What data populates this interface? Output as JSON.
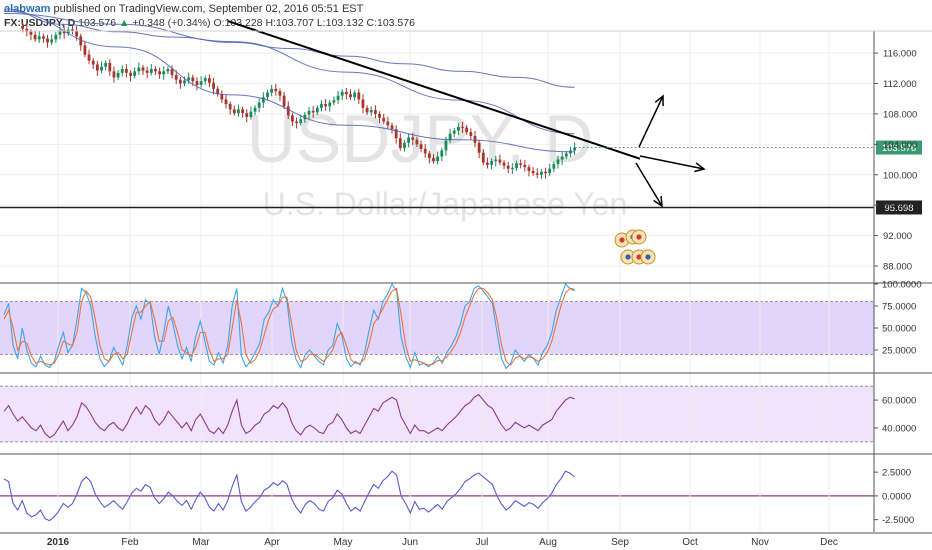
{
  "header": {
    "username": "alabwam",
    "published": "published on TradingView.com, September 02, 2016 05:51 EST",
    "symbol": "FX:USDJPY, D",
    "last": "103.576",
    "change": "+0.348 (+0.34%)",
    "open": "O:103.228",
    "high": "H:103.707",
    "low": "L:103.132",
    "close": "C:103.576"
  },
  "watermark": {
    "symbol": "USDJPY, D",
    "name": "U.S. Dollar/Japanese Yen"
  },
  "colors": {
    "up_candle": "#1a8a5a",
    "down_candle": "#a8342c",
    "ma": "#4e5db8",
    "stoch_k": "#3fa5e8",
    "stoch_d": "#e8763c",
    "stoch_band": "#e3d4fb",
    "rsi": "#8e3a8e",
    "rsi_band": "#f1e3fb",
    "mom": "#5a5ad0",
    "zero_line": "#8e3a8e",
    "price_label_bg": "#3b9a72",
    "support_label_bg": "#222222"
  },
  "chart_data": [
    {
      "type": "candlestick",
      "x_ticks": [
        "2016",
        "Feb",
        "Mar",
        "Apr",
        "May",
        "Jun",
        "Jul",
        "Aug",
        "Sep",
        "Oct",
        "Nov",
        "Dec"
      ],
      "y_ticks": [
        "116.000",
        "112.000",
        "108.000",
        "104.000",
        "100.000",
        "96.000",
        "92.000",
        "88.000"
      ],
      "ylim": [
        85.9,
        118.9
      ],
      "last_price": "103.576",
      "support_level": "95.698",
      "closes": [
        119.6,
        119.2,
        118.8,
        118.4,
        117.8,
        118.2,
        117.9,
        117.4,
        117.8,
        118.4,
        119.0,
        118.6,
        119.1,
        118.9,
        118.2,
        117.0,
        115.8,
        115.0,
        114.5,
        113.7,
        114.2,
        114.7,
        113.6,
        112.8,
        113.4,
        113.9,
        113.4,
        113.0,
        113.6,
        114.1,
        113.7,
        113.4,
        113.9,
        113.6,
        113.2,
        113.6,
        113.9,
        113.1,
        112.5,
        112.0,
        112.4,
        112.8,
        112.3,
        111.8,
        112.3,
        112.7,
        112.1,
        111.3,
        110.6,
        109.9,
        109.3,
        108.6,
        108.1,
        108.6,
        108.1,
        107.6,
        108.3,
        108.8,
        109.5,
        110.2,
        110.8,
        111.3,
        111.0,
        110.4,
        109.0,
        107.8,
        107.0,
        106.8,
        107.3,
        107.9,
        108.4,
        108.2,
        108.8,
        109.3,
        109.0,
        109.5,
        109.8,
        110.4,
        110.9,
        110.6,
        110.2,
        110.8,
        109.9,
        108.8,
        108.2,
        108.5,
        108.0,
        107.5,
        107.0,
        106.5,
        106.0,
        104.8,
        103.5,
        104.2,
        104.9,
        104.6,
        104.0,
        103.4,
        102.8,
        102.2,
        101.8,
        102.4,
        103.2,
        104.5,
        105.4,
        105.8,
        106.3,
        106.2,
        105.6,
        105.1,
        104.2,
        102.9,
        101.6,
        101.3,
        101.8,
        102.0,
        101.6,
        101.2,
        100.8,
        100.9,
        101.5,
        101.3,
        101.0,
        100.5,
        100.2,
        100.0,
        100.4,
        100.2,
        100.8,
        101.4,
        102.0,
        102.4,
        102.8,
        103.2,
        103.58
      ],
      "ma_series": [
        {
          "values": [
            121.5,
            116.8,
            110.5,
            106.5,
            104.6,
            103.0
          ]
        },
        {
          "values": [
            121.2,
            119.8,
            117.5,
            113.5,
            109.8,
            105.4
          ]
        },
        {
          "values": [
            121.8,
            119.8,
            118.8,
            118.1,
            117.4,
            116.6,
            115.6,
            114.6,
            113.6,
            112.8,
            111.5
          ]
        }
      ],
      "trendline": {
        "from": [
          120.2
        ],
        "to": [
          102.1
        ]
      }
    },
    {
      "type": "line",
      "name": "stochastic",
      "y_ticks": [
        "100.0000",
        "75.0000",
        "50.0000",
        "25.0000"
      ],
      "ylim": [
        0,
        100
      ],
      "band": [
        20,
        80
      ],
      "k": [
        65,
        78,
        30,
        15,
        50,
        25,
        10,
        6,
        18,
        8,
        5,
        12,
        30,
        45,
        22,
        30,
        60,
        95,
        90,
        75,
        40,
        15,
        6,
        12,
        28,
        18,
        8,
        30,
        62,
        75,
        60,
        82,
        78,
        40,
        20,
        45,
        75,
        55,
        30,
        15,
        28,
        12,
        40,
        58,
        35,
        12,
        8,
        22,
        10,
        30,
        75,
        95,
        18,
        6,
        12,
        22,
        32,
        60,
        68,
        82,
        75,
        95,
        80,
        35,
        14,
        5,
        20,
        25,
        18,
        12,
        8,
        25,
        30,
        55,
        42,
        15,
        6,
        12,
        8,
        22,
        48,
        70,
        60,
        80,
        88,
        100,
        92,
        40,
        18,
        5,
        22,
        8,
        10,
        6,
        10,
        18,
        10,
        22,
        30,
        40,
        55,
        75,
        80,
        95,
        98,
        92,
        85,
        78,
        45,
        15,
        4,
        10,
        25,
        18,
        12,
        20,
        15,
        8,
        22,
        30,
        45,
        70,
        85,
        100,
        95,
        92
      ],
      "d": [
        60,
        70,
        50,
        25,
        35,
        33,
        18,
        10,
        12,
        10,
        8,
        10,
        20,
        35,
        32,
        30,
        45,
        80,
        92,
        85,
        60,
        30,
        15,
        12,
        20,
        22,
        15,
        20,
        45,
        68,
        68,
        75,
        80,
        60,
        35,
        35,
        58,
        62,
        45,
        25,
        22,
        18,
        28,
        45,
        45,
        25,
        12,
        15,
        15,
        20,
        50,
        82,
        55,
        20,
        10,
        14,
        24,
        42,
        60,
        72,
        75,
        85,
        85,
        55,
        25,
        12,
        14,
        20,
        20,
        16,
        12,
        18,
        25,
        40,
        45,
        30,
        14,
        10,
        10,
        15,
        32,
        55,
        62,
        72,
        82,
        92,
        95,
        65,
        30,
        12,
        14,
        12,
        10,
        8,
        9,
        13,
        13,
        17,
        24,
        32,
        45,
        62,
        75,
        88,
        95,
        95,
        90,
        82,
        60,
        30,
        12,
        8,
        16,
        18,
        15,
        17,
        16,
        12,
        15,
        22,
        35,
        55,
        75,
        90,
        95,
        94
      ]
    },
    {
      "type": "line",
      "name": "rsi",
      "y_ticks": [
        "60.0000",
        "40.0000"
      ],
      "ylim": [
        22,
        78
      ],
      "band": [
        30,
        70
      ],
      "values": [
        52,
        56,
        50,
        45,
        48,
        44,
        40,
        38,
        42,
        36,
        33,
        35,
        40,
        45,
        38,
        42,
        48,
        58,
        55,
        50,
        44,
        40,
        38,
        42,
        44,
        40,
        38,
        43,
        50,
        55,
        50,
        56,
        53,
        46,
        42,
        46,
        52,
        48,
        44,
        40,
        44,
        38,
        46,
        50,
        44,
        38,
        36,
        40,
        36,
        42,
        52,
        60,
        42,
        36,
        38,
        42,
        44,
        50,
        52,
        56,
        54,
        58,
        54,
        44,
        38,
        35,
        40,
        42,
        40,
        37,
        36,
        42,
        44,
        50,
        46,
        40,
        36,
        38,
        36,
        42,
        48,
        54,
        52,
        58,
        60,
        62,
        60,
        48,
        42,
        36,
        42,
        38,
        38,
        36,
        38,
        40,
        38,
        42,
        45,
        48,
        52,
        56,
        58,
        62,
        64,
        60,
        56,
        54,
        48,
        42,
        38,
        40,
        44,
        42,
        40,
        42,
        40,
        38,
        42,
        44,
        46,
        52,
        56,
        60,
        62,
        61
      ]
    },
    {
      "type": "line",
      "name": "momentum",
      "y_ticks": [
        "2.5000",
        "0.0000",
        "-2.5000"
      ],
      "ylim": [
        -3.8,
        4.2
      ],
      "zero": 0,
      "values": [
        1.8,
        1.5,
        -0.8,
        -1.5,
        -0.5,
        -1.8,
        -2.2,
        -2.0,
        -1.5,
        -2.4,
        -2.6,
        -2.2,
        -1.6,
        -0.8,
        -1.2,
        -0.8,
        0.2,
        1.5,
        2.0,
        1.5,
        0.2,
        -0.6,
        -1.2,
        -0.9,
        -0.5,
        -1.0,
        -1.4,
        -0.6,
        0.3,
        0.8,
        0.5,
        1.2,
        0.9,
        -0.2,
        -0.8,
        -0.3,
        0.4,
        0.0,
        -0.6,
        -1.0,
        -0.5,
        -1.4,
        -0.4,
        0.4,
        -0.2,
        -1.2,
        -1.6,
        -0.8,
        -1.5,
        -0.5,
        1.0,
        2.2,
        -0.6,
        -1.6,
        -1.2,
        -0.6,
        -0.2,
        0.6,
        0.9,
        1.4,
        1.1,
        1.6,
        1.2,
        -0.3,
        -1.2,
        -1.8,
        -0.9,
        -0.5,
        -0.8,
        -1.4,
        -1.6,
        -0.6,
        -0.2,
        0.6,
        0.2,
        -0.8,
        -1.6,
        -1.2,
        -1.6,
        -0.6,
        0.4,
        1.2,
        0.8,
        1.6,
        2.0,
        2.6,
        2.2,
        0.0,
        -0.8,
        -1.8,
        -0.6,
        -1.4,
        -1.3,
        -1.7,
        -1.3,
        -0.9,
        -1.4,
        -0.6,
        -0.2,
        0.2,
        0.8,
        1.5,
        1.8,
        2.2,
        2.4,
        2.0,
        1.6,
        1.2,
        0.0,
        -0.9,
        -1.5,
        -1.1,
        -0.5,
        -0.8,
        -1.1,
        -0.7,
        -0.9,
        -1.3,
        -0.7,
        -0.3,
        0.3,
        1.2,
        1.8,
        2.6,
        2.4,
        2.0
      ]
    }
  ]
}
